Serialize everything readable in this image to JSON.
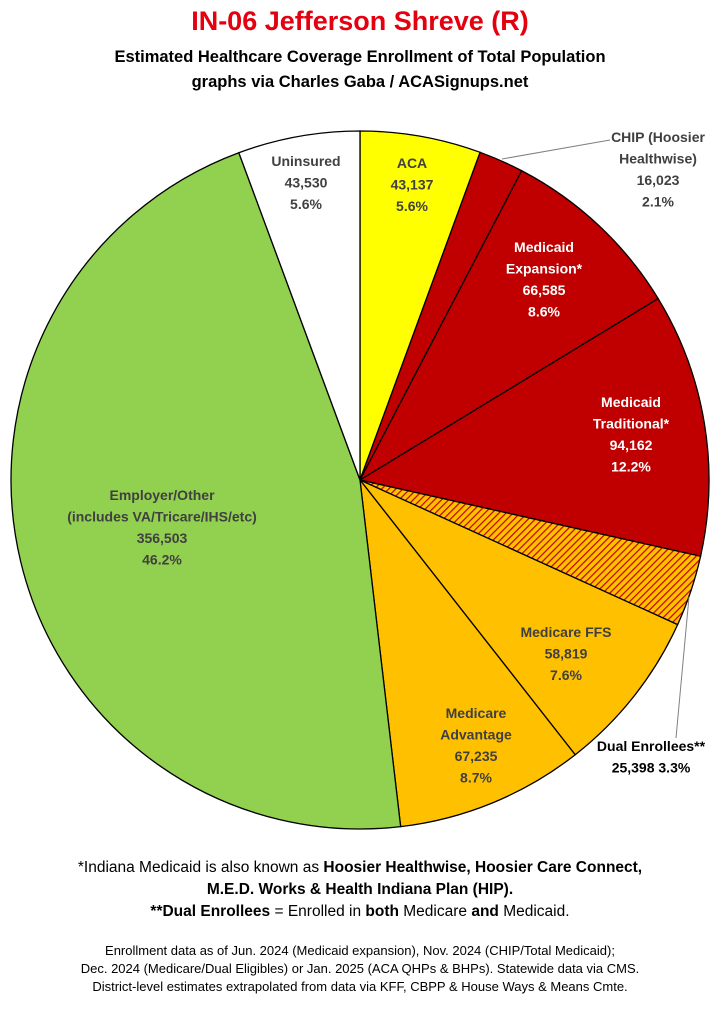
{
  "title": "IN-06 Jefferson Shreve (R)",
  "subtitle": "Estimated Healthcare Coverage Enrollment of Total Population",
  "credit": "graphs via Charles Gaba / ACASignups.net",
  "colors": {
    "aca": "#ffff00",
    "medicaid": "#c00000",
    "medicare": "#ffc000",
    "employer": "#92d050",
    "uninsured": "#ffffff",
    "title": "#e4000f"
  },
  "chart_data": {
    "type": "pie",
    "slices": [
      {
        "key": "aca",
        "label": "ACA",
        "value": 43137,
        "value_label": "43,137",
        "percent": "5.6%",
        "color": "#ffff00"
      },
      {
        "key": "chip",
        "label": "CHIP (Hoosier Healthwise)",
        "value": 16023,
        "value_label": "16,023",
        "percent": "2.1%",
        "color": "#c00000"
      },
      {
        "key": "medicaid_exp",
        "label": "Medicaid Expansion*",
        "value": 66585,
        "value_label": "66,585",
        "percent": "8.6%",
        "color": "#c00000"
      },
      {
        "key": "medicaid_trad",
        "label": "Medicaid Traditional*",
        "value": 94162,
        "value_label": "94,162",
        "percent": "12.2%",
        "color": "#c00000"
      },
      {
        "key": "dual",
        "label": "Dual Enrollees**",
        "value": 25398,
        "value_label": "25,398",
        "percent": "3.3%",
        "color": "#ffc000",
        "hatched": true
      },
      {
        "key": "medicare_ffs",
        "label": "Medicare FFS",
        "value": 58819,
        "value_label": "58,819",
        "percent": "7.6%",
        "color": "#ffc000"
      },
      {
        "key": "medicare_adv",
        "label": "Medicare Advantage",
        "value": 67235,
        "value_label": "67,235",
        "percent": "8.7%",
        "color": "#ffc000"
      },
      {
        "key": "employer",
        "label": "Employer/Other (includes VA/Tricare/IHS/etc)",
        "value": 356503,
        "value_label": "356,503",
        "percent": "46.2%",
        "color": "#92d050"
      },
      {
        "key": "uninsured",
        "label": "Uninsured",
        "value": 43530,
        "value_label": "43,530",
        "percent": "5.6%",
        "color": "#ffffff"
      }
    ],
    "labels": {
      "aca": [
        "ACA",
        "43,137",
        "5.6%"
      ],
      "chip": [
        "CHIP (Hoosier",
        "Healthwise)",
        "16,023",
        "2.1%"
      ],
      "medicaid_exp": [
        "Medicaid",
        "Expansion*",
        "66,585",
        "8.6%"
      ],
      "medicaid_trad": [
        "Medicaid",
        "Traditional*",
        "94,162",
        "12.2%"
      ],
      "dual": [
        "Dual Enrollees**",
        "25,398 3.3%"
      ],
      "medicare_ffs": [
        "Medicare FFS",
        "58,819",
        "7.6%"
      ],
      "medicare_adv": [
        "Medicare",
        "Advantage",
        "67,235",
        "8.7%"
      ],
      "employer": [
        "Employer/Other",
        "(includes VA/Tricare/IHS/etc)",
        "356,503",
        "46.2%"
      ],
      "uninsured": [
        "Uninsured",
        "43,530",
        "5.6%"
      ]
    }
  },
  "notes": {
    "line1_a": "*Indiana Medicaid is also known as ",
    "line1_b": "Hoosier Healthwise, Hoosier Care Connect,",
    "line2": "M.E.D. Works & Health Indiana Plan (HIP).",
    "line3_a": "**Dual Enrollees",
    "line3_b": " = Enrolled in ",
    "line3_c": "both",
    "line3_d": " Medicare ",
    "line3_e": "and",
    "line3_f": " Medicaid."
  },
  "sources": {
    "line1": "Enrollment data as of Jun. 2024 (Medicaid expansion), Nov. 2024 (CHIP/Total Medicaid);",
    "line2": "Dec. 2024 (Medicare/Dual Eligibles) or Jan. 2025 (ACA QHPs & BHPs). Statewide data via CMS.",
    "line3": "District-level estimates extrapolated from data via KFF, CBPP & House Ways & Means Cmte."
  }
}
